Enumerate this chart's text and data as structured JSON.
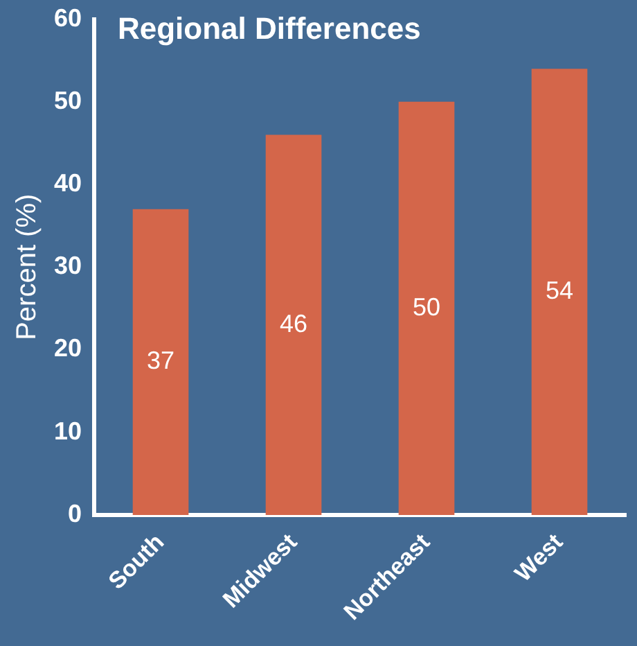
{
  "chart_data": {
    "type": "bar",
    "title": "Regional Differences",
    "ylabel": "Percent (%)",
    "categories": [
      "South",
      "Midwest",
      "Northeast",
      "West"
    ],
    "values": [
      37,
      46,
      50,
      54
    ],
    "color": "#d4664a",
    "ylim": [
      0,
      60
    ],
    "yticks": [
      0,
      10,
      20,
      30,
      40,
      50,
      60
    ],
    "grid": false,
    "data_labels": true
  }
}
